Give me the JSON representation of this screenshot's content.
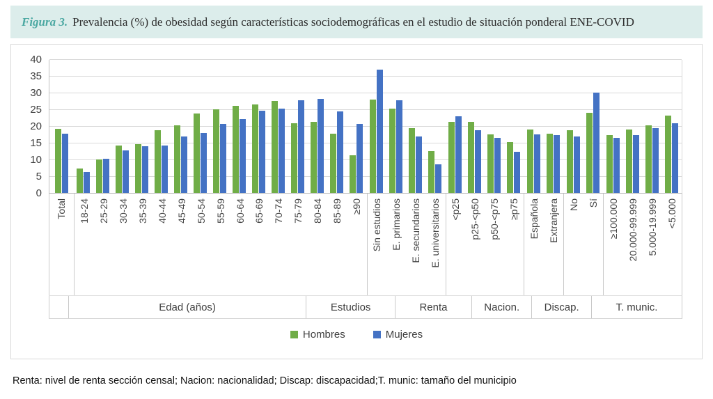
{
  "figure": {
    "label": "Figura 3.",
    "caption": "Prevalencia (%) de obesidad según características sociodemográficas en el estudio de situación ponderal ENE-COVID"
  },
  "footnote": "Renta: nivel de renta sección censal; Nacion: nacionalidad; Discap: discapacidad;T. munic: tamaño del municipio",
  "colors": {
    "hombres": "#70ad47",
    "mujeres": "#4472c4",
    "accent_teal": "#4ba8a2",
    "title_bg": "#dcedeb",
    "grid": "#d9d9d9"
  },
  "chart_data": {
    "type": "bar",
    "title": "Prevalencia (%) de obesidad según características sociodemográficas en el estudio de situación ponderal ENE-COVID",
    "xlabel": "",
    "ylabel": "",
    "ylim": [
      0,
      40
    ],
    "yticks": [
      0,
      5,
      10,
      15,
      20,
      25,
      30,
      35,
      40
    ],
    "grid": true,
    "legend_position": "bottom",
    "series_names": [
      "Hombres",
      "Mujeres"
    ],
    "groups": [
      {
        "label": "",
        "categories": [
          "Total"
        ],
        "hombres": [
          19.1
        ],
        "mujeres": [
          17.7
        ]
      },
      {
        "label": "Edad (años)",
        "categories": [
          "18-24",
          "25-29",
          "30-34",
          "35-39",
          "40-44",
          "45-49",
          "50-54",
          "55-59",
          "60-64",
          "65-69",
          "70-74",
          "75-79",
          "80-84",
          "85-89",
          "≥90"
        ],
        "hombres": [
          7.2,
          9.9,
          14.2,
          14.5,
          18.7,
          20.2,
          23.7,
          24.9,
          26.1,
          26.5,
          27.6,
          20.9,
          21.2,
          17.8,
          11.2
        ],
        "mujeres": [
          6.2,
          10.3,
          12.8,
          14.0,
          14.2,
          16.9,
          17.9,
          20.6,
          22.0,
          24.6,
          25.3,
          27.8,
          28.2,
          24.4,
          20.6
        ]
      },
      {
        "label": "Estudios",
        "categories": [
          "Sin estudios",
          "E. primarios",
          "E. secundarios",
          "E. universitarios"
        ],
        "hombres": [
          28.0,
          25.3,
          19.4,
          12.4
        ],
        "mujeres": [
          36.8,
          27.8,
          16.9,
          8.6
        ]
      },
      {
        "label": "Renta",
        "categories": [
          "<p25",
          "p25-<p50",
          "p50-<p75",
          "≥p75"
        ],
        "hombres": [
          21.3,
          21.2,
          17.4,
          15.3
        ],
        "mujeres": [
          22.9,
          18.8,
          16.5,
          12.2
        ]
      },
      {
        "label": "Nacion.",
        "categories": [
          "Española",
          "Extranjera"
        ],
        "hombres": [
          19.0,
          17.8
        ],
        "mujeres": [
          17.6,
          17.2
        ]
      },
      {
        "label": "Discap.",
        "categories": [
          "No",
          "Sí"
        ],
        "hombres": [
          18.8,
          23.9
        ],
        "mujeres": [
          16.8,
          29.9
        ]
      },
      {
        "label": "T. munic.",
        "categories": [
          "≥100.000",
          "20.000-99.999",
          "5.000-19.999",
          "<5.000"
        ],
        "hombres": [
          17.2,
          19.0,
          20.3,
          23.2
        ],
        "mujeres": [
          16.5,
          17.2,
          19.3,
          20.8
        ]
      }
    ]
  }
}
